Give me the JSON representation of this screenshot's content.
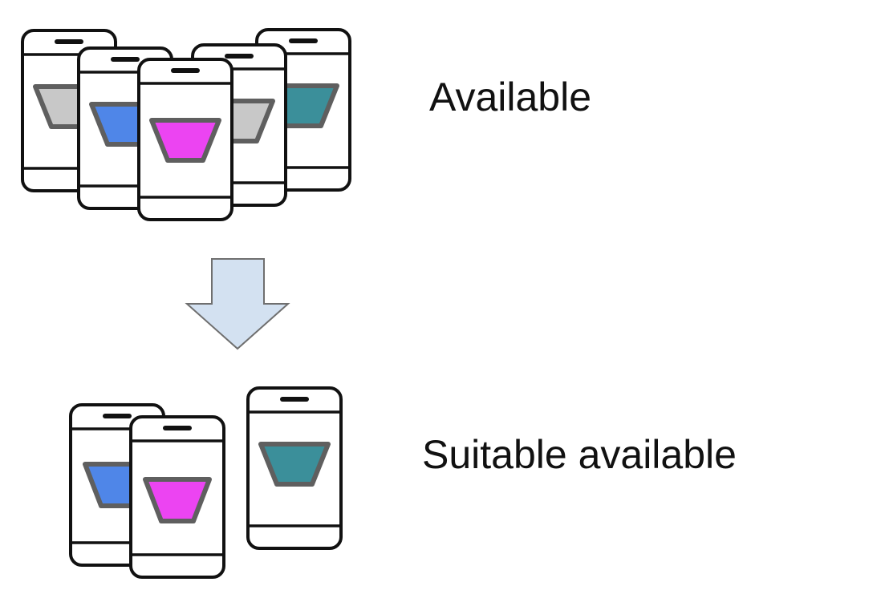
{
  "labels": {
    "available": "Available",
    "suitable_available": "Suitable available"
  },
  "colors": {
    "gray": "#c8c8c8",
    "blue": "#4f86e8",
    "magenta": "#ec44f2",
    "teal": "#3b8f9a",
    "arrow_fill": "#d3e1f1",
    "arrow_stroke": "#6f6f6f",
    "phone_stroke": "#111111",
    "funnel_stroke": "#5f5f5f"
  },
  "groups": {
    "available": {
      "phones": [
        {
          "name": "phone-gray-back-left",
          "color_key": "gray"
        },
        {
          "name": "phone-teal-back-right",
          "color_key": "teal"
        },
        {
          "name": "phone-blue",
          "color_key": "blue"
        },
        {
          "name": "phone-gray-right",
          "color_key": "gray"
        },
        {
          "name": "phone-magenta-front",
          "color_key": "magenta"
        }
      ]
    },
    "suitable_available": {
      "phones": [
        {
          "name": "phone-blue",
          "color_key": "blue"
        },
        {
          "name": "phone-magenta-front",
          "color_key": "magenta"
        },
        {
          "name": "phone-teal",
          "color_key": "teal"
        }
      ]
    }
  },
  "arrow": {
    "icon": "down-arrow-icon",
    "direction": "down"
  }
}
